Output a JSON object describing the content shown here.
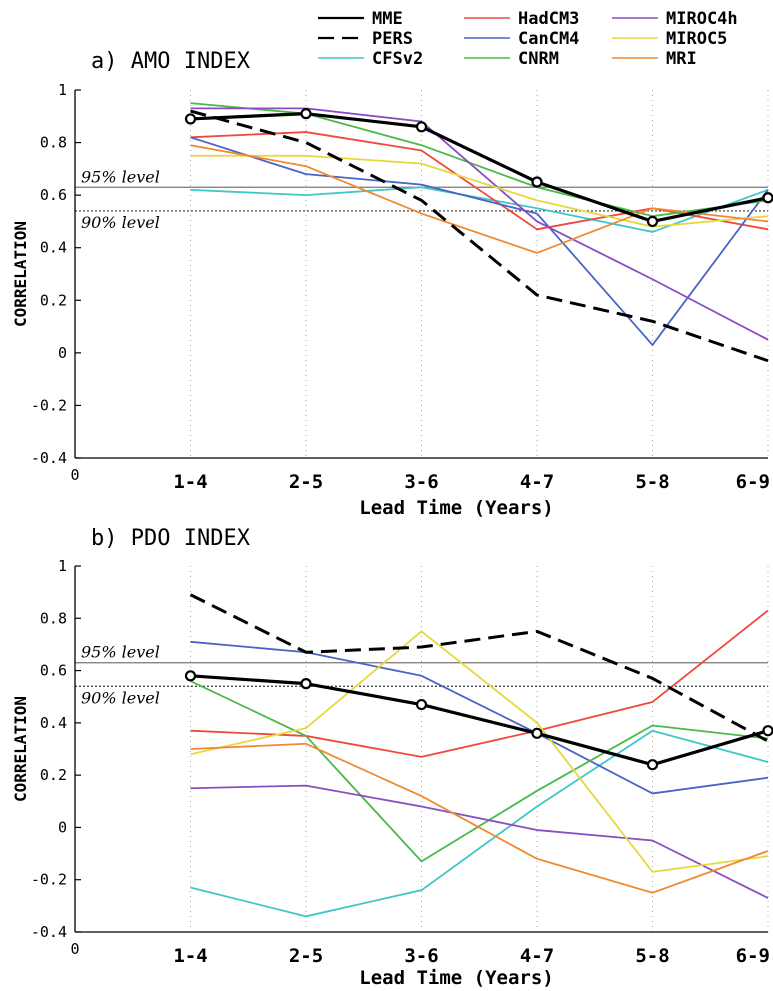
{
  "legend": [
    {
      "name": "MME",
      "color": "#000000",
      "dash": "",
      "width": 2.2
    },
    {
      "name": "PERS",
      "color": "#000000",
      "dash": "16,8",
      "width": 2.2
    },
    {
      "name": "CFSv2",
      "color": "#3fc6c6",
      "dash": "",
      "width": 1.6
    },
    {
      "name": "HadCM3",
      "color": "#f0483c",
      "dash": "",
      "width": 1.6
    },
    {
      "name": "CanCM4",
      "color": "#4a63c6",
      "dash": "",
      "width": 1.6
    },
    {
      "name": "CNRM",
      "color": "#4ab84a",
      "dash": "",
      "width": 1.6
    },
    {
      "name": "MIROC4h",
      "color": "#8a4cc0",
      "dash": "",
      "width": 1.6
    },
    {
      "name": "MIROC5",
      "color": "#e6d83c",
      "dash": "",
      "width": 1.6
    },
    {
      "name": "MRI",
      "color": "#f08a30",
      "dash": "",
      "width": 1.6
    }
  ],
  "chart_data": [
    {
      "type": "line",
      "title": "a) AMO INDEX",
      "xlabel": "Lead Time (Years)",
      "ylabel": "CORRELATION",
      "x_zero_label": "0",
      "categories": [
        "1-4",
        "2-5",
        "3-6",
        "4-7",
        "5-8",
        "6-9"
      ],
      "ylim": [
        -0.4,
        1
      ],
      "yticks": [
        "-0.4",
        "-0.2",
        "0",
        "0.2",
        "0.4",
        "0.6",
        "0.8",
        "1"
      ],
      "reference_lines": [
        {
          "label": "95% level",
          "value": 0.63,
          "style": "solid"
        },
        {
          "label": "90% level",
          "value": 0.54,
          "style": "dotted"
        }
      ],
      "grid": "vertical dotted",
      "series": [
        {
          "name": "CFSv2",
          "values": [
            0.62,
            0.6,
            0.63,
            0.55,
            0.46,
            0.62
          ]
        },
        {
          "name": "HadCM3",
          "values": [
            0.82,
            0.84,
            0.77,
            0.47,
            0.55,
            0.47
          ]
        },
        {
          "name": "CanCM4",
          "values": [
            0.82,
            0.68,
            0.64,
            0.53,
            0.03,
            0.62
          ]
        },
        {
          "name": "CNRM",
          "values": [
            0.95,
            0.91,
            0.79,
            0.63,
            0.52,
            0.58
          ]
        },
        {
          "name": "MIROC4h",
          "values": [
            0.93,
            0.93,
            0.88,
            0.5,
            0.28,
            0.05
          ]
        },
        {
          "name": "MIROC5",
          "values": [
            0.75,
            0.75,
            0.72,
            0.58,
            0.48,
            0.52
          ]
        },
        {
          "name": "MRI",
          "values": [
            0.79,
            0.71,
            0.53,
            0.38,
            0.55,
            0.5
          ]
        },
        {
          "name": "PERS",
          "values": [
            0.92,
            0.8,
            0.58,
            0.22,
            0.12,
            -0.03
          ]
        },
        {
          "name": "MME",
          "values": [
            0.89,
            0.91,
            0.86,
            0.65,
            0.5,
            0.59
          ]
        }
      ]
    },
    {
      "type": "line",
      "title": "b) PDO INDEX",
      "xlabel": "Lead Time (Years)",
      "ylabel": "CORRELATION",
      "x_zero_label": "0",
      "categories": [
        "1-4",
        "2-5",
        "3-6",
        "4-7",
        "5-8",
        "6-9"
      ],
      "ylim": [
        -0.4,
        1
      ],
      "yticks": [
        "-0.4",
        "-0.2",
        "0",
        "0.2",
        "0.4",
        "0.6",
        "0.8",
        "1"
      ],
      "reference_lines": [
        {
          "label": "95% level",
          "value": 0.63,
          "style": "solid"
        },
        {
          "label": "90% level",
          "value": 0.54,
          "style": "dotted"
        }
      ],
      "grid": "vertical dotted",
      "series": [
        {
          "name": "CFSv2",
          "values": [
            -0.23,
            -0.34,
            -0.24,
            0.08,
            0.37,
            0.25
          ]
        },
        {
          "name": "HadCM3",
          "values": [
            0.37,
            0.35,
            0.27,
            0.37,
            0.48,
            0.83
          ]
        },
        {
          "name": "CanCM4",
          "values": [
            0.71,
            0.67,
            0.58,
            0.36,
            0.13,
            0.19
          ]
        },
        {
          "name": "CNRM",
          "values": [
            0.56,
            0.35,
            -0.13,
            0.14,
            0.39,
            0.34
          ]
        },
        {
          "name": "MIROC4h",
          "values": [
            0.15,
            0.16,
            0.08,
            -0.01,
            -0.05,
            -0.27
          ]
        },
        {
          "name": "MIROC5",
          "values": [
            0.28,
            0.38,
            0.75,
            0.4,
            -0.17,
            -0.11
          ]
        },
        {
          "name": "MRI",
          "values": [
            0.3,
            0.32,
            0.12,
            -0.12,
            -0.25,
            -0.09
          ]
        },
        {
          "name": "PERS",
          "values": [
            0.89,
            0.67,
            0.69,
            0.75,
            0.57,
            0.33
          ]
        },
        {
          "name": "MME",
          "values": [
            0.58,
            0.55,
            0.47,
            0.36,
            0.24,
            0.37
          ]
        }
      ]
    }
  ]
}
